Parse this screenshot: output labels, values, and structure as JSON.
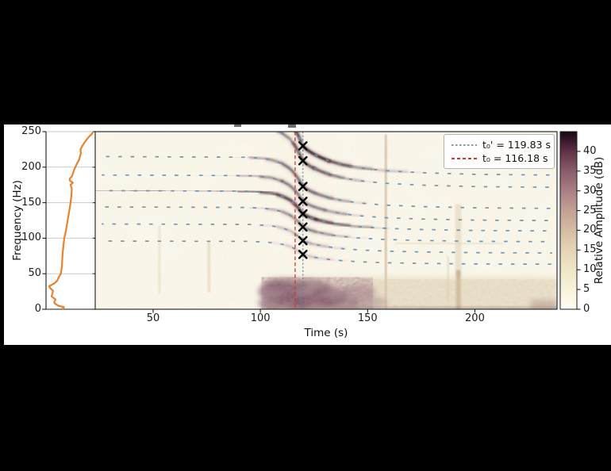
{
  "figure": {
    "background": "#000000",
    "panel_background": "#ffffff",
    "spectrogram_background": "#fcf9ef"
  },
  "axes": {
    "y": {
      "label": "Frequency (Hz)",
      "ticks": [
        "0",
        "50",
        "100",
        "150",
        "200",
        "250"
      ],
      "range": [
        0,
        250
      ]
    },
    "x": {
      "label": "Time (s)",
      "ticks": [
        "50",
        "100",
        "150",
        "200"
      ],
      "range": [
        23,
        238
      ]
    },
    "colorbar": {
      "label": "Relative Amplitude (dB)",
      "ticks": [
        "0",
        "5",
        "10",
        "15",
        "20",
        "25",
        "30",
        "35",
        "40"
      ],
      "range": [
        0,
        45
      ],
      "stops": [
        [
          0,
          "#fffdf4"
        ],
        [
          5,
          "#f8f2dc"
        ],
        [
          10,
          "#efe6c8"
        ],
        [
          15,
          "#e4d4b4"
        ],
        [
          20,
          "#d5bda4"
        ],
        [
          25,
          "#c2a094"
        ],
        [
          30,
          "#a97f85"
        ],
        [
          35,
          "#8a5c6b"
        ],
        [
          40,
          "#5e3146"
        ],
        [
          43,
          "#351729"
        ],
        [
          45,
          "#140a12"
        ]
      ]
    }
  },
  "legend": {
    "items": [
      {
        "label": "t₀' = 119.83 s",
        "color": "#7d9cb5",
        "dash": "dotted"
      },
      {
        "label": "t₀ = 116.18 s",
        "color": "#cc3b33",
        "dash": "dashed"
      }
    ]
  },
  "chart_data": {
    "type": "heatmap",
    "subtype": "spectrogram with side power-spectrum panel",
    "title": "",
    "xlabel": "Time (s)",
    "ylabel": "Frequency (Hz)",
    "x_range_s": [
      23,
      238.3
    ],
    "y_range_hz": [
      0,
      250
    ],
    "colorbar_label": "Relative Amplitude (dB)",
    "colorbar_range_db": [
      0,
      45
    ],
    "t0_s": 116.18,
    "t0_prime_s": 119.83,
    "line_colors": {
      "t0": "#cc3b33",
      "t0_prime": "#5b7f99",
      "fitted_dashes": "#6b90aa",
      "psd": "#e8822e",
      "trace_core": "#2f1a22",
      "trace_halo": "#96616a"
    },
    "harmonics": {
      "f_left_hz": [
        286,
        260,
        215,
        189,
        167,
        144,
        120,
        96
      ],
      "glide_t": [
        23,
        95,
        105,
        110,
        114,
        117,
        120,
        123,
        127,
        132,
        138,
        146,
        158,
        175,
        200,
        238.3
      ],
      "glide_factor": [
        1.0,
        0.995,
        0.98,
        0.955,
        0.92,
        0.87,
        0.8,
        0.775,
        0.752,
        0.73,
        0.712,
        0.696,
        0.682,
        0.672,
        0.664,
        0.66
      ]
    },
    "x_markers": {
      "t_s": 119.83,
      "freqs_hz": [
        230,
        209,
        173,
        152,
        134,
        116,
        97,
        77
      ]
    },
    "dark_traces": [
      {
        "h": 0,
        "pts": [
          [
            112,
            0
          ],
          [
            116,
            0.55
          ],
          [
            120,
            0.95
          ],
          [
            132,
            0.85
          ],
          [
            142,
            0.55
          ],
          [
            152,
            0.25
          ],
          [
            168,
            0.12
          ],
          [
            176,
            0
          ]
        ]
      },
      {
        "h": 1,
        "pts": [
          [
            100,
            0
          ],
          [
            108,
            0.3
          ],
          [
            115,
            0.65
          ],
          [
            125,
            0.75
          ],
          [
            133,
            0.6
          ],
          [
            140,
            0.35
          ],
          [
            148,
            0.12
          ],
          [
            155,
            0
          ]
        ]
      },
      {
        "h": 2,
        "pts": [
          [
            88,
            0
          ],
          [
            95,
            0.25
          ],
          [
            103,
            0.35
          ],
          [
            110,
            0.5
          ],
          [
            118,
            0.65
          ],
          [
            126,
            0.6
          ],
          [
            134,
            0.45
          ],
          [
            142,
            0.2
          ],
          [
            150,
            0
          ]
        ]
      },
      {
        "h": 3,
        "pts": [
          [
            70,
            0
          ],
          [
            78,
            0.15
          ],
          [
            90,
            0.2
          ],
          [
            100,
            0.3
          ],
          [
            110,
            0.5
          ],
          [
            120,
            0.55
          ],
          [
            130,
            0.45
          ],
          [
            140,
            0.25
          ],
          [
            148,
            0
          ]
        ]
      },
      {
        "h": 4,
        "pts": [
          [
            23,
            0.25
          ],
          [
            40,
            0.3
          ],
          [
            55,
            0.45
          ],
          [
            62,
            0.3
          ],
          [
            70,
            0.38
          ],
          [
            80,
            0.35
          ],
          [
            90,
            0.45
          ],
          [
            100,
            0.55
          ],
          [
            108,
            0.7
          ],
          [
            116,
            0.85
          ],
          [
            126,
            0.8
          ],
          [
            134,
            0.65
          ],
          [
            142,
            0.45
          ],
          [
            152,
            0.2
          ],
          [
            160,
            0
          ]
        ]
      },
      {
        "h": 5,
        "pts": [
          [
            95,
            0
          ],
          [
            103,
            0.2
          ],
          [
            110,
            0.35
          ],
          [
            118,
            0.5
          ],
          [
            126,
            0.45
          ],
          [
            134,
            0.3
          ],
          [
            142,
            0.12
          ],
          [
            150,
            0
          ]
        ]
      },
      {
        "h": 6,
        "pts": [
          [
            100,
            0
          ],
          [
            108,
            0.15
          ],
          [
            116,
            0.3
          ],
          [
            124,
            0.3
          ],
          [
            132,
            0.18
          ],
          [
            140,
            0
          ]
        ]
      },
      {
        "h": 7,
        "pts": [
          [
            104,
            0
          ],
          [
            112,
            0.12
          ],
          [
            118,
            0.22
          ],
          [
            126,
            0.18
          ],
          [
            134,
            0.08
          ],
          [
            140,
            0
          ]
        ]
      }
    ],
    "noise_band": {
      "t_start_s": 102.5,
      "f_top_hz": 46,
      "dark_until_s": 150
    },
    "artifacts": [
      {
        "kind": "v",
        "t": 158.5,
        "f": [
          0,
          246
        ],
        "w": 2.2,
        "color": "#a4764a",
        "op": 0.5
      },
      {
        "kind": "v",
        "t": 192.3,
        "f": [
          0,
          148
        ],
        "w": 8,
        "color": "#cdb48c",
        "op": 0.3
      },
      {
        "kind": "v",
        "t": 192.3,
        "f": [
          0,
          55
        ],
        "w": 5,
        "color": "#9c7550",
        "op": 0.45
      },
      {
        "kind": "v",
        "t": 187.5,
        "f": [
          10,
          75
        ],
        "w": 2,
        "color": "#c0a87e",
        "op": 0.35
      },
      {
        "kind": "v",
        "t": 53,
        "f": [
          22,
          118
        ],
        "w": 2.5,
        "color": "#d6c79c",
        "op": 0.4
      },
      {
        "kind": "v",
        "t": 76,
        "f": [
          24,
          95
        ],
        "w": 3,
        "color": "#d2bf92",
        "op": 0.45
      },
      {
        "kind": "h",
        "f": 92.6,
        "t": [
          163,
          213
        ],
        "w": 1.2,
        "color": "#c9b287",
        "op": 0.5
      },
      {
        "kind": "blob",
        "t": [
          226,
          238
        ],
        "f": [
          0,
          13
        ],
        "color": "#6a4050",
        "op": 0.45
      }
    ],
    "band_blobs": [
      [
        108,
        25,
        9,
        13,
        0.55
      ],
      [
        116,
        12,
        8,
        11,
        0.65
      ],
      [
        112,
        34,
        10,
        8,
        0.45
      ],
      [
        124,
        30,
        9,
        10,
        0.5
      ],
      [
        124,
        10,
        10,
        9,
        0.55
      ],
      [
        132,
        18,
        9,
        12,
        0.5
      ],
      [
        138,
        8,
        8,
        8,
        0.4
      ],
      [
        146,
        25,
        8,
        9,
        0.32
      ],
      [
        150,
        10,
        9,
        8,
        0.28
      ],
      [
        105,
        8,
        6,
        8,
        0.5
      ]
    ],
    "psd_curve": {
      "color": "#e8822e",
      "points": [
        [
          0,
          0.35
        ],
        [
          3,
          0.38
        ],
        [
          5,
          0.257
        ],
        [
          8,
          0.19
        ],
        [
          10,
          0.173
        ],
        [
          14,
          0.2
        ],
        [
          18,
          0.118
        ],
        [
          22,
          0.134
        ],
        [
          26,
          0.15
        ],
        [
          30,
          0.084
        ],
        [
          32.5,
          0.067
        ],
        [
          36,
          0.168
        ],
        [
          40,
          0.235
        ],
        [
          45,
          0.269
        ],
        [
          50,
          0.314
        ],
        [
          60,
          0.336
        ],
        [
          70,
          0.345
        ],
        [
          80,
          0.353
        ],
        [
          90,
          0.37
        ],
        [
          100,
          0.387
        ],
        [
          110,
          0.42
        ],
        [
          120,
          0.445
        ],
        [
          130,
          0.47
        ],
        [
          140,
          0.496
        ],
        [
          150,
          0.52
        ],
        [
          160,
          0.538
        ],
        [
          170,
          0.546
        ],
        [
          175,
          0.52
        ],
        [
          178,
          0.57
        ],
        [
          181,
          0.504
        ],
        [
          184,
          0.504
        ],
        [
          187,
          0.55
        ],
        [
          190,
          0.563
        ],
        [
          195,
          0.588
        ],
        [
          200,
          0.62
        ],
        [
          205,
          0.655
        ],
        [
          210,
          0.697
        ],
        [
          215,
          0.72
        ],
        [
          220,
          0.74
        ],
        [
          225,
          0.73
        ],
        [
          230,
          0.77
        ],
        [
          235,
          0.82
        ],
        [
          240,
          0.874
        ],
        [
          244,
          0.924
        ],
        [
          247,
          0.975
        ],
        [
          250,
          1.0
        ]
      ]
    }
  }
}
